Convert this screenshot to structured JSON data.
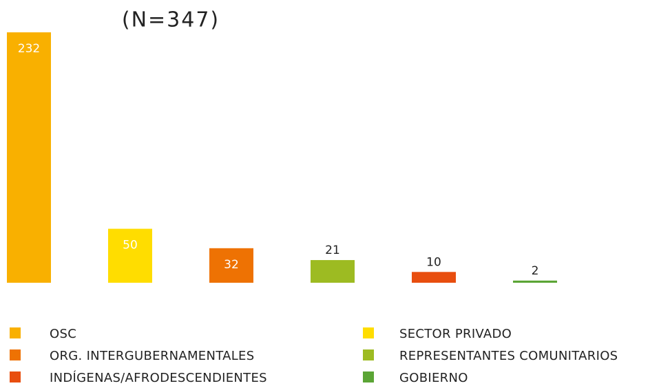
{
  "chart_data": {
    "type": "bar",
    "title": "(N=347)",
    "categories": [
      "OSC",
      "SECTOR PRIVADO",
      "ORG. INTERGUBERNAMENTALES",
      "REPRESENTANTES COMUNITARIOS",
      "INDÍGENAS/AFRODESCENDIENTES",
      "GOBIERNO"
    ],
    "values": [
      232,
      50,
      32,
      21,
      10,
      2
    ],
    "colors": [
      "#f9b000",
      "#ffdd00",
      "#ee7203",
      "#9dbb22",
      "#e84e0f",
      "#5ba535"
    ]
  }
}
